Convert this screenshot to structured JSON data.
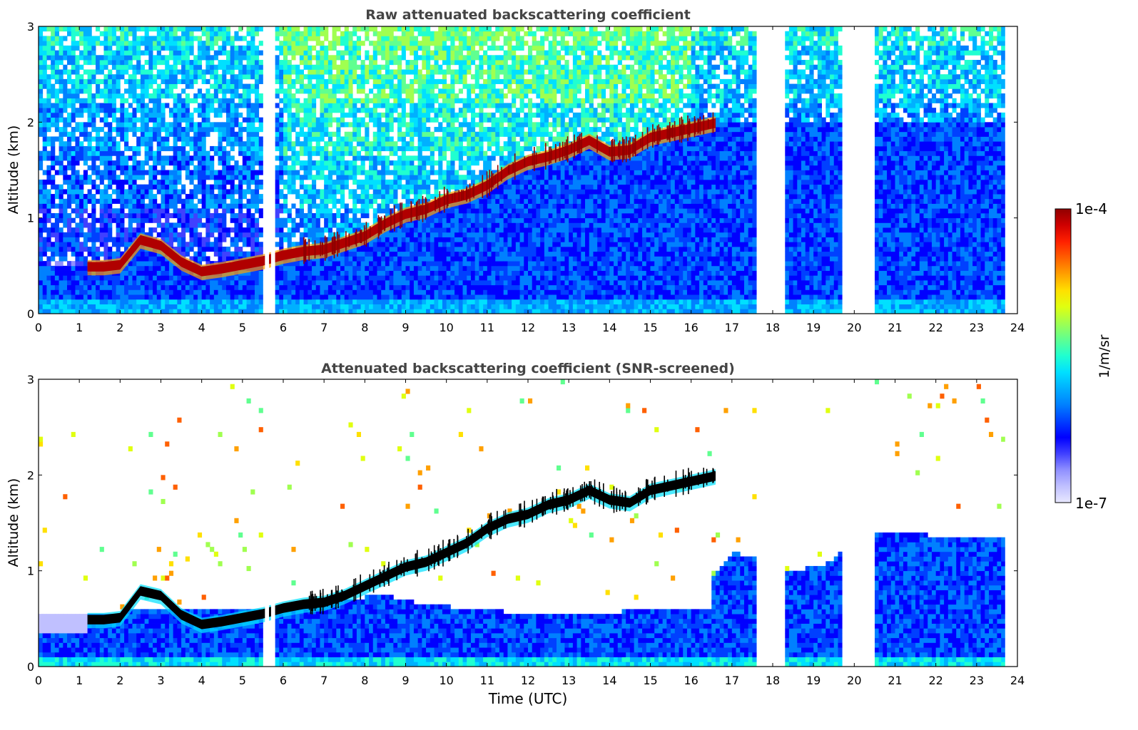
{
  "chart_data": [
    {
      "type": "heatmap",
      "title": "Raw attenuated backscattering coefficient",
      "xlabel": "",
      "ylabel": "Altitude (km)",
      "xlim": [
        0,
        24
      ],
      "ylim": [
        0,
        3
      ],
      "xticks": [
        "0",
        "1",
        "2",
        "3",
        "4",
        "5",
        "6",
        "7",
        "8",
        "9",
        "10",
        "11",
        "12",
        "13",
        "14",
        "15",
        "16",
        "17",
        "18",
        "19",
        "20",
        "21",
        "22",
        "23",
        "24"
      ],
      "yticks": [
        "0",
        "1",
        "2",
        "3"
      ],
      "boundary_layer_top_km": [
        [
          1.2,
          0.5
        ],
        [
          1.6,
          0.5
        ],
        [
          2.0,
          0.52
        ],
        [
          2.5,
          0.78
        ],
        [
          3.0,
          0.72
        ],
        [
          3.5,
          0.55
        ],
        [
          4.0,
          0.45
        ],
        [
          4.5,
          0.48
        ],
        [
          5.0,
          0.52
        ],
        [
          5.5,
          0.56
        ],
        [
          6.0,
          0.62
        ],
        [
          6.5,
          0.66
        ],
        [
          7.0,
          0.68
        ],
        [
          7.5,
          0.75
        ],
        [
          8.0,
          0.82
        ],
        [
          8.5,
          0.95
        ],
        [
          9.0,
          1.05
        ],
        [
          9.5,
          1.1
        ],
        [
          10.0,
          1.2
        ],
        [
          10.5,
          1.25
        ],
        [
          11.0,
          1.35
        ],
        [
          11.5,
          1.5
        ],
        [
          12.0,
          1.6
        ],
        [
          12.5,
          1.65
        ],
        [
          13.0,
          1.72
        ],
        [
          13.5,
          1.82
        ],
        [
          14.0,
          1.7
        ],
        [
          14.5,
          1.72
        ],
        [
          15.0,
          1.85
        ],
        [
          16.6,
          2.0
        ]
      ],
      "data_gaps_utc": [
        [
          5.55,
          5.65
        ],
        [
          5.7,
          5.8
        ],
        [
          17.65,
          18.3
        ],
        [
          19.75,
          20.5
        ],
        [
          23.7,
          24.0
        ]
      ],
      "colorscale": "jet",
      "series": []
    },
    {
      "type": "heatmap",
      "title": "Attenuated backscattering coefficient (SNR-screened)",
      "xlabel": "Time (UTC)",
      "ylabel": "Altitude (km)",
      "xlim": [
        0,
        24
      ],
      "ylim": [
        0,
        3
      ],
      "xticks": [
        "0",
        "1",
        "2",
        "3",
        "4",
        "5",
        "6",
        "7",
        "8",
        "9",
        "10",
        "11",
        "12",
        "13",
        "14",
        "15",
        "16",
        "17",
        "18",
        "19",
        "20",
        "21",
        "22",
        "23",
        "24"
      ],
      "yticks": [
        "0",
        "1",
        "2",
        "3"
      ],
      "boundary_layer_top_km": [
        [
          1.2,
          0.5
        ],
        [
          1.6,
          0.5
        ],
        [
          2.0,
          0.52
        ],
        [
          2.5,
          0.8
        ],
        [
          3.0,
          0.75
        ],
        [
          3.5,
          0.55
        ],
        [
          4.0,
          0.45
        ],
        [
          4.5,
          0.48
        ],
        [
          5.0,
          0.52
        ],
        [
          5.5,
          0.56
        ],
        [
          6.0,
          0.62
        ],
        [
          6.5,
          0.66
        ],
        [
          7.0,
          0.68
        ],
        [
          7.5,
          0.75
        ],
        [
          8.0,
          0.85
        ],
        [
          8.5,
          0.95
        ],
        [
          9.0,
          1.05
        ],
        [
          9.5,
          1.1
        ],
        [
          10.0,
          1.2
        ],
        [
          10.5,
          1.3
        ],
        [
          11.0,
          1.45
        ],
        [
          11.5,
          1.55
        ],
        [
          12.0,
          1.6
        ],
        [
          12.5,
          1.7
        ],
        [
          13.0,
          1.75
        ],
        [
          13.5,
          1.85
        ],
        [
          14.0,
          1.75
        ],
        [
          14.5,
          1.72
        ],
        [
          15.0,
          1.85
        ],
        [
          16.6,
          2.0
        ]
      ],
      "screened_signal_top_km": [
        [
          0,
          0.55
        ],
        [
          6,
          0.62
        ],
        [
          8.5,
          0.75
        ],
        [
          9.5,
          0.65
        ],
        [
          12,
          0.55
        ],
        [
          16.5,
          0.6
        ],
        [
          17,
          0.9
        ],
        [
          18.5,
          0.7
        ],
        [
          19.5,
          0.8
        ],
        [
          20,
          1.1
        ],
        [
          23.7,
          1.05
        ]
      ],
      "data_gaps_utc": [
        [
          5.55,
          5.65
        ],
        [
          5.7,
          5.8
        ],
        [
          17.65,
          18.3
        ],
        [
          19.75,
          20.5
        ],
        [
          23.7,
          24.0
        ]
      ],
      "colorscale": "jet",
      "series": []
    }
  ],
  "colorbar": {
    "max_label": "1e-4",
    "min_label": "1e-7",
    "unit_label": "1/m/sr",
    "colors": [
      "#e8e8ff",
      "#c0c0ff",
      "#9090ff",
      "#4040ff",
      "#0000ff",
      "#0040ff",
      "#0080ff",
      "#00b0ff",
      "#00e0ff",
      "#20ffd0",
      "#60ff90",
      "#a0ff50",
      "#e0ff10",
      "#ffe000",
      "#ffa000",
      "#ff6000",
      "#ff2000",
      "#d00000",
      "#900000"
    ]
  }
}
